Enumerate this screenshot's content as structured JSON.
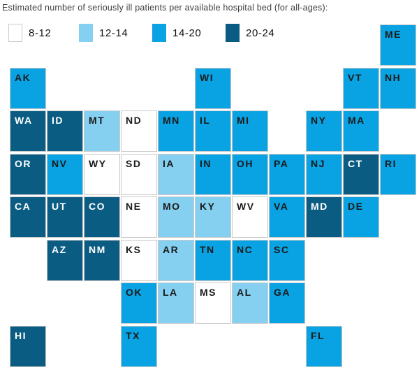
{
  "chart_data": {
    "type": "heatmap",
    "subtype": "us-state-tile-cartogram",
    "title": "Estimated number of seriously ill patients per available hospital bed (for all-ages):",
    "legend_position": "top",
    "grid": {
      "rows": 8,
      "cols": 11
    },
    "bins": [
      {
        "key": "8-12",
        "label": "8-12",
        "color": "#ffffff",
        "text_color": "#1a1a1a"
      },
      {
        "key": "12-14",
        "label": "12-14",
        "color": "#85d0f1",
        "text_color": "#1a1a1a"
      },
      {
        "key": "14-20",
        "label": "14-20",
        "color": "#09a2e2",
        "text_color": "#1a1a1a"
      },
      {
        "key": "20-24",
        "label": "20-24",
        "color": "#0b5c83",
        "text_color": "#ffffff"
      }
    ],
    "states": [
      {
        "abbr": "ME",
        "row": 0,
        "col": 10,
        "bin": "14-20"
      },
      {
        "abbr": "AK",
        "row": 1,
        "col": 0,
        "bin": "14-20"
      },
      {
        "abbr": "WI",
        "row": 1,
        "col": 5,
        "bin": "14-20"
      },
      {
        "abbr": "VT",
        "row": 1,
        "col": 9,
        "bin": "14-20"
      },
      {
        "abbr": "NH",
        "row": 1,
        "col": 10,
        "bin": "14-20"
      },
      {
        "abbr": "WA",
        "row": 2,
        "col": 0,
        "bin": "20-24"
      },
      {
        "abbr": "ID",
        "row": 2,
        "col": 1,
        "bin": "20-24"
      },
      {
        "abbr": "MT",
        "row": 2,
        "col": 2,
        "bin": "12-14"
      },
      {
        "abbr": "ND",
        "row": 2,
        "col": 3,
        "bin": "8-12"
      },
      {
        "abbr": "MN",
        "row": 2,
        "col": 4,
        "bin": "14-20"
      },
      {
        "abbr": "IL",
        "row": 2,
        "col": 5,
        "bin": "14-20"
      },
      {
        "abbr": "MI",
        "row": 2,
        "col": 6,
        "bin": "14-20"
      },
      {
        "abbr": "NY",
        "row": 2,
        "col": 8,
        "bin": "14-20"
      },
      {
        "abbr": "MA",
        "row": 2,
        "col": 9,
        "bin": "14-20"
      },
      {
        "abbr": "OR",
        "row": 3,
        "col": 0,
        "bin": "20-24"
      },
      {
        "abbr": "NV",
        "row": 3,
        "col": 1,
        "bin": "14-20"
      },
      {
        "abbr": "WY",
        "row": 3,
        "col": 2,
        "bin": "8-12"
      },
      {
        "abbr": "SD",
        "row": 3,
        "col": 3,
        "bin": "8-12"
      },
      {
        "abbr": "IA",
        "row": 3,
        "col": 4,
        "bin": "12-14"
      },
      {
        "abbr": "IN",
        "row": 3,
        "col": 5,
        "bin": "14-20"
      },
      {
        "abbr": "OH",
        "row": 3,
        "col": 6,
        "bin": "14-20"
      },
      {
        "abbr": "PA",
        "row": 3,
        "col": 7,
        "bin": "14-20"
      },
      {
        "abbr": "NJ",
        "row": 3,
        "col": 8,
        "bin": "14-20"
      },
      {
        "abbr": "CT",
        "row": 3,
        "col": 9,
        "bin": "20-24"
      },
      {
        "abbr": "RI",
        "row": 3,
        "col": 10,
        "bin": "14-20"
      },
      {
        "abbr": "CA",
        "row": 4,
        "col": 0,
        "bin": "20-24"
      },
      {
        "abbr": "UT",
        "row": 4,
        "col": 1,
        "bin": "20-24"
      },
      {
        "abbr": "CO",
        "row": 4,
        "col": 2,
        "bin": "20-24"
      },
      {
        "abbr": "NE",
        "row": 4,
        "col": 3,
        "bin": "8-12"
      },
      {
        "abbr": "MO",
        "row": 4,
        "col": 4,
        "bin": "12-14"
      },
      {
        "abbr": "KY",
        "row": 4,
        "col": 5,
        "bin": "12-14"
      },
      {
        "abbr": "WV",
        "row": 4,
        "col": 6,
        "bin": "8-12"
      },
      {
        "abbr": "VA",
        "row": 4,
        "col": 7,
        "bin": "14-20"
      },
      {
        "abbr": "MD",
        "row": 4,
        "col": 8,
        "bin": "20-24"
      },
      {
        "abbr": "DE",
        "row": 4,
        "col": 9,
        "bin": "14-20"
      },
      {
        "abbr": "AZ",
        "row": 5,
        "col": 1,
        "bin": "20-24"
      },
      {
        "abbr": "NM",
        "row": 5,
        "col": 2,
        "bin": "20-24"
      },
      {
        "abbr": "KS",
        "row": 5,
        "col": 3,
        "bin": "8-12"
      },
      {
        "abbr": "AR",
        "row": 5,
        "col": 4,
        "bin": "12-14"
      },
      {
        "abbr": "TN",
        "row": 5,
        "col": 5,
        "bin": "14-20"
      },
      {
        "abbr": "NC",
        "row": 5,
        "col": 6,
        "bin": "14-20"
      },
      {
        "abbr": "SC",
        "row": 5,
        "col": 7,
        "bin": "14-20"
      },
      {
        "abbr": "OK",
        "row": 6,
        "col": 3,
        "bin": "14-20"
      },
      {
        "abbr": "LA",
        "row": 6,
        "col": 4,
        "bin": "12-14"
      },
      {
        "abbr": "MS",
        "row": 6,
        "col": 5,
        "bin": "8-12"
      },
      {
        "abbr": "AL",
        "row": 6,
        "col": 6,
        "bin": "12-14"
      },
      {
        "abbr": "GA",
        "row": 6,
        "col": 7,
        "bin": "14-20"
      },
      {
        "abbr": "HI",
        "row": 7,
        "col": 0,
        "bin": "20-24"
      },
      {
        "abbr": "TX",
        "row": 7,
        "col": 3,
        "bin": "14-20"
      },
      {
        "abbr": "FL",
        "row": 7,
        "col": 8,
        "bin": "14-20"
      }
    ]
  }
}
